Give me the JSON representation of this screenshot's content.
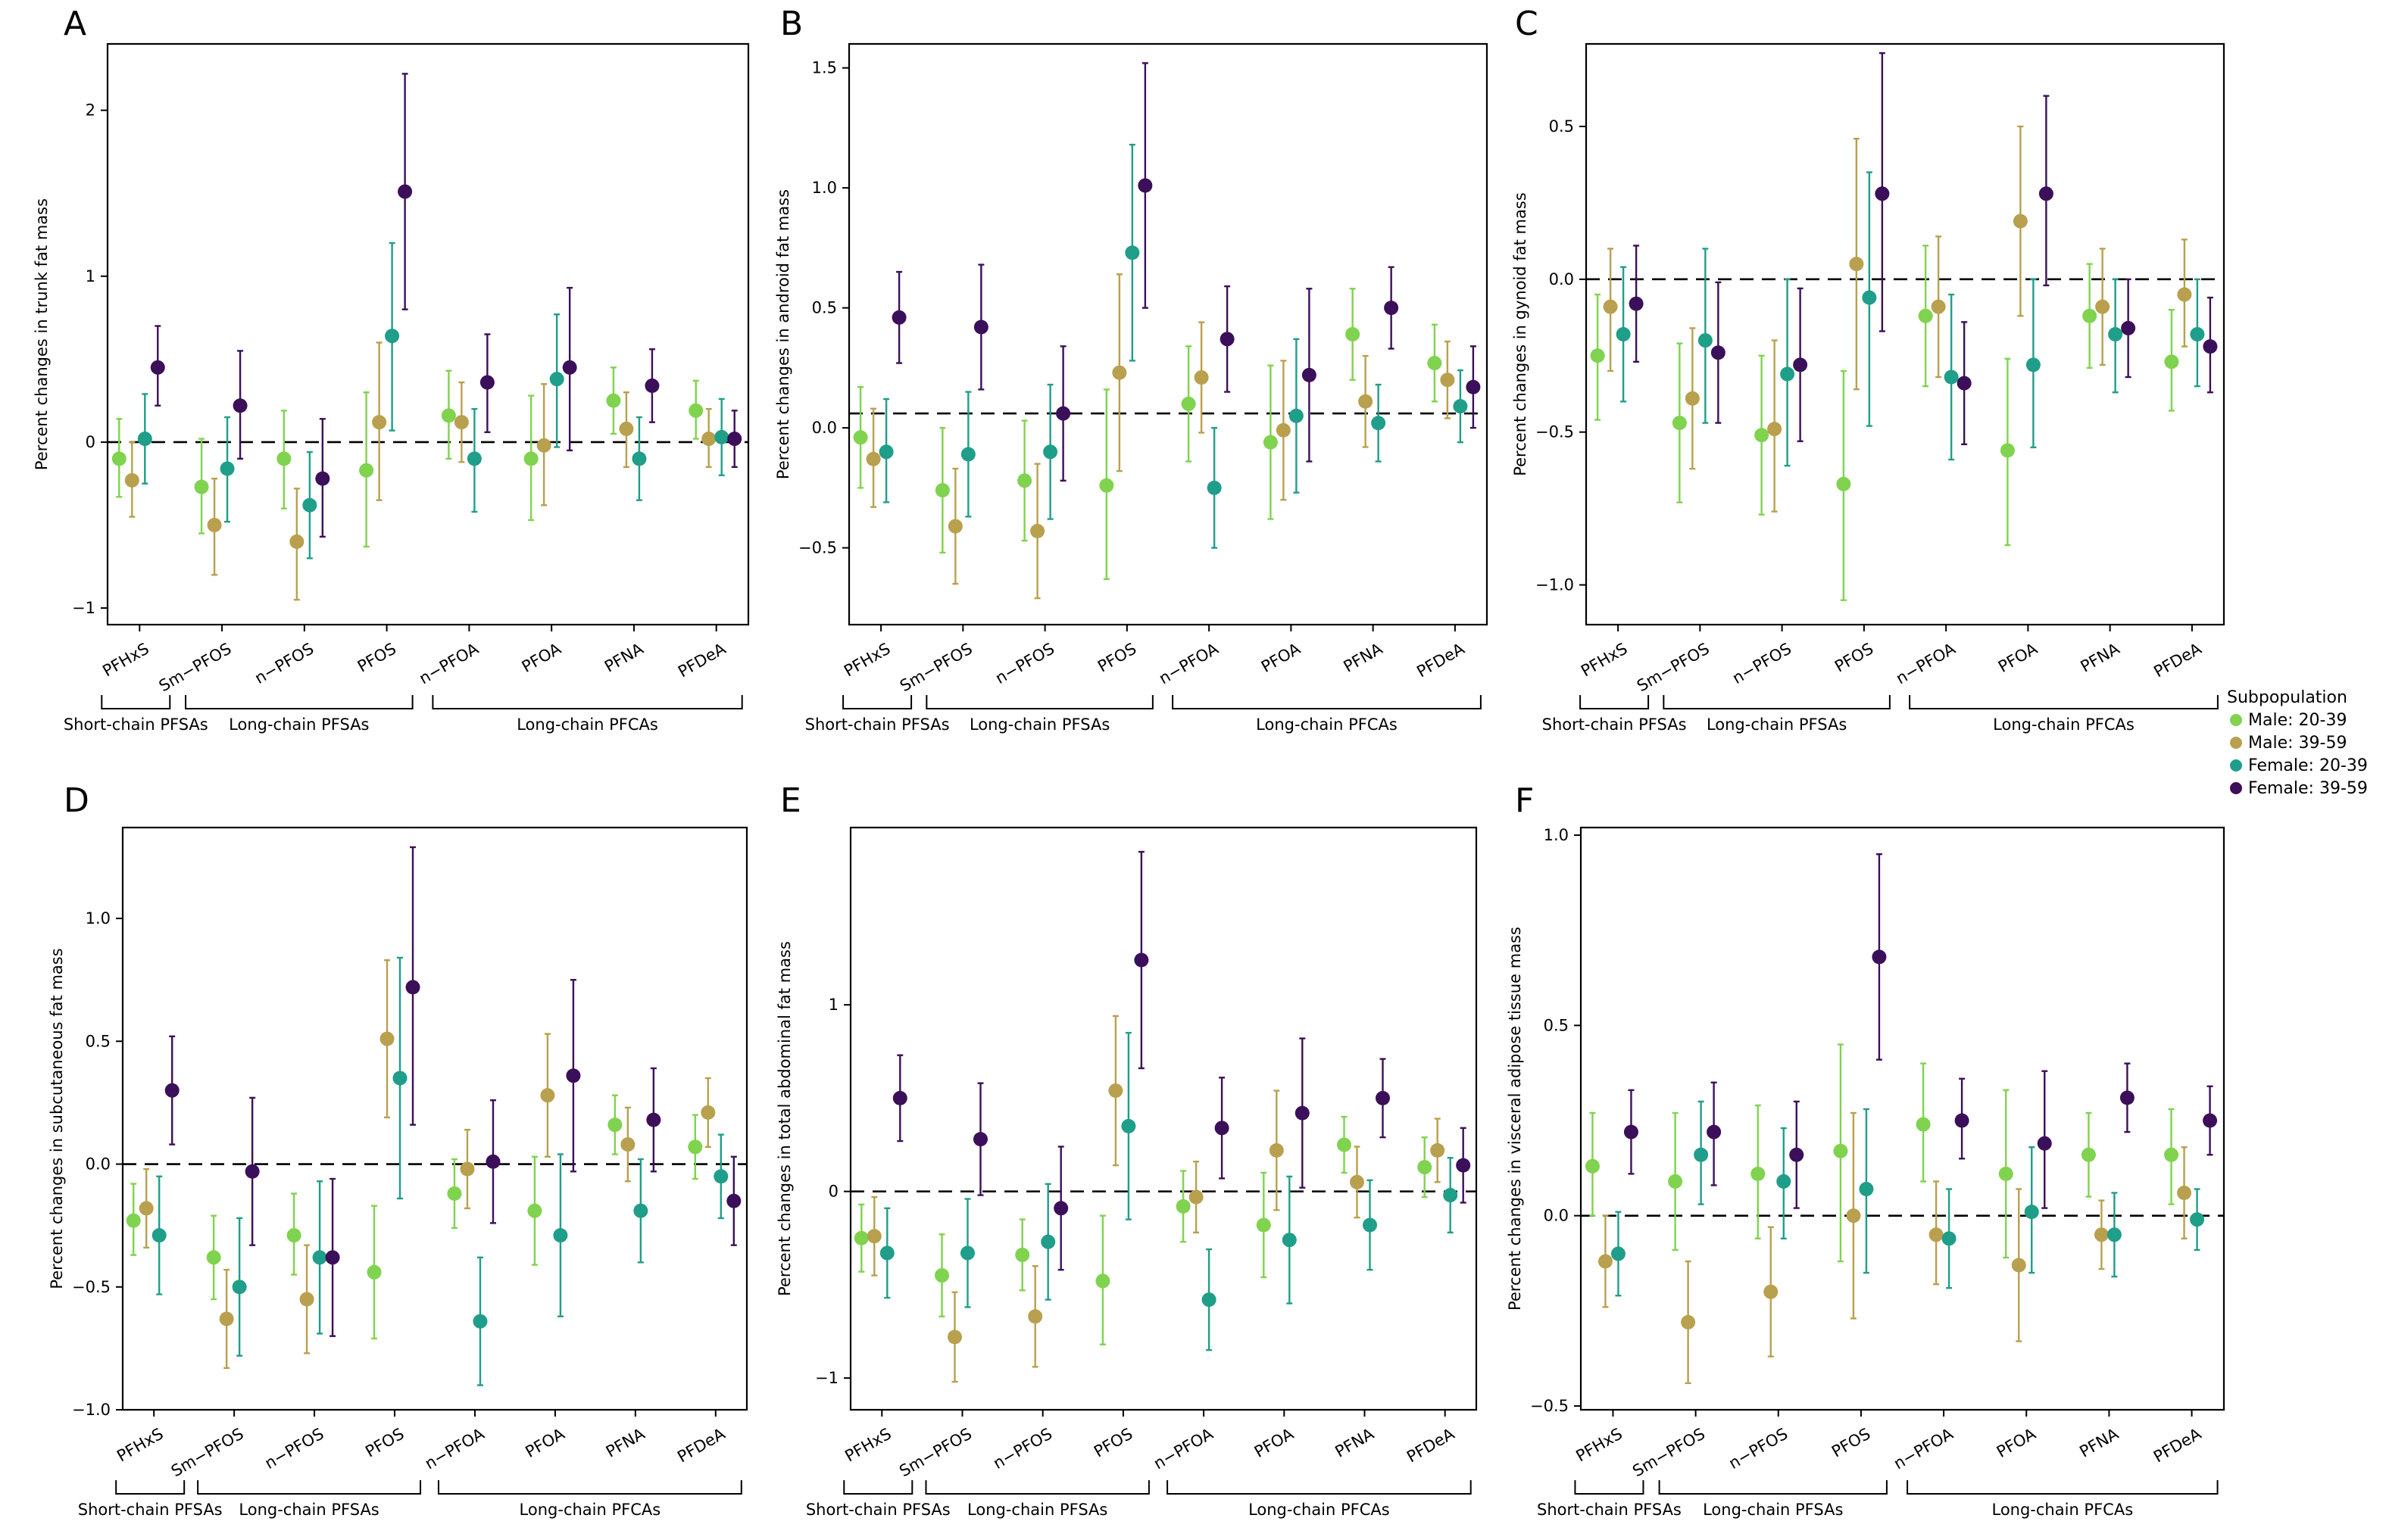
{
  "legend": {
    "title": "Subpopulation",
    "entries": [
      {
        "name": "Male: 20-39",
        "color": "#7fd34e"
      },
      {
        "name": "Male: 39-59",
        "color": "#b8a04e"
      },
      {
        "name": "Female: 20-39",
        "color": "#1f9e89"
      },
      {
        "name": "Female: 39-59",
        "color": "#3b0f59"
      }
    ]
  },
  "categories": [
    "PFHxS",
    "Sm−PFOS",
    "n−PFOS",
    "PFOS",
    "n−PFOA",
    "PFOA",
    "PFNA",
    "PFDeA"
  ],
  "groups": [
    {
      "label": "Short-chain PFSAs",
      "from": 0,
      "to": 0
    },
    {
      "label": "Long-chain PFSAs",
      "from": 1,
      "to": 3
    },
    {
      "label": "Long-chain PFCAs",
      "from": 4,
      "to": 7
    }
  ],
  "chart_data": [
    {
      "panel": "A",
      "type": "scatter",
      "ylabel": "Percent changes in trunk fat mass",
      "ylim": [
        -1.1,
        2.4
      ],
      "yticks": [
        -1,
        0,
        1,
        2
      ],
      "yticklabels": [
        "−1",
        "0",
        "1",
        "2"
      ],
      "reference_line": 0,
      "series": [
        {
          "name": "Male: 20-39",
          "values": [
            -0.1,
            -0.27,
            -0.1,
            -0.17,
            0.16,
            -0.1,
            0.25,
            0.19
          ],
          "lower": [
            -0.33,
            -0.55,
            -0.4,
            -0.63,
            -0.1,
            -0.47,
            0.05,
            0.02
          ],
          "upper": [
            0.14,
            0.02,
            0.19,
            0.3,
            0.43,
            0.28,
            0.45,
            0.37
          ]
        },
        {
          "name": "Male: 39-59",
          "values": [
            -0.23,
            -0.5,
            -0.6,
            0.12,
            0.12,
            -0.02,
            0.08,
            0.02
          ],
          "lower": [
            -0.45,
            -0.8,
            -0.95,
            -0.35,
            -0.12,
            -0.38,
            -0.15,
            -0.15
          ],
          "upper": [
            0.0,
            -0.22,
            -0.28,
            0.6,
            0.36,
            0.35,
            0.3,
            0.2
          ]
        },
        {
          "name": "Female: 20-39",
          "values": [
            0.02,
            -0.16,
            -0.38,
            0.64,
            -0.1,
            0.38,
            -0.1,
            0.03
          ],
          "lower": [
            -0.25,
            -0.48,
            -0.7,
            0.07,
            -0.42,
            -0.03,
            -0.35,
            -0.2
          ],
          "upper": [
            0.29,
            0.15,
            -0.06,
            1.2,
            0.2,
            0.77,
            0.15,
            0.26
          ]
        },
        {
          "name": "Female: 39-59",
          "values": [
            0.45,
            0.22,
            -0.22,
            1.51,
            0.36,
            0.45,
            0.34,
            0.02
          ],
          "lower": [
            0.22,
            -0.1,
            -0.57,
            0.8,
            0.06,
            -0.05,
            0.12,
            -0.15
          ],
          "upper": [
            0.7,
            0.55,
            0.14,
            2.22,
            0.65,
            0.93,
            0.56,
            0.19
          ]
        }
      ]
    },
    {
      "panel": "B",
      "type": "scatter",
      "ylabel": "Percent changes in android fat mass",
      "ylim": [
        -0.82,
        1.6
      ],
      "yticks": [
        -0.5,
        0.0,
        0.5,
        1.0,
        1.5
      ],
      "yticklabels": [
        "−0.5",
        "0.0",
        "0.5",
        "1.0",
        "1.5"
      ],
      "reference_line": 0.06,
      "series": [
        {
          "name": "Male: 20-39",
          "values": [
            -0.04,
            -0.26,
            -0.22,
            -0.24,
            0.1,
            -0.06,
            0.39,
            0.27
          ],
          "lower": [
            -0.25,
            -0.52,
            -0.47,
            -0.63,
            -0.14,
            -0.38,
            0.2,
            0.11
          ],
          "upper": [
            0.17,
            0.0,
            0.03,
            0.16,
            0.34,
            0.26,
            0.58,
            0.43
          ]
        },
        {
          "name": "Male: 39-59",
          "values": [
            -0.13,
            -0.41,
            -0.43,
            0.23,
            0.21,
            -0.01,
            0.11,
            0.2
          ],
          "lower": [
            -0.33,
            -0.65,
            -0.71,
            -0.18,
            -0.02,
            -0.3,
            -0.08,
            0.04
          ],
          "upper": [
            0.08,
            -0.17,
            -0.15,
            0.64,
            0.44,
            0.28,
            0.3,
            0.36
          ]
        },
        {
          "name": "Female: 20-39",
          "values": [
            -0.1,
            -0.11,
            -0.1,
            0.73,
            -0.25,
            0.05,
            0.02,
            0.09
          ],
          "lower": [
            -0.31,
            -0.37,
            -0.38,
            0.28,
            -0.5,
            -0.27,
            -0.14,
            -0.06
          ],
          "upper": [
            0.12,
            0.15,
            0.18,
            1.18,
            0.0,
            0.37,
            0.18,
            0.24
          ]
        },
        {
          "name": "Female: 39-59",
          "values": [
            0.46,
            0.42,
            0.06,
            1.01,
            0.37,
            0.22,
            0.5,
            0.17
          ],
          "lower": [
            0.27,
            0.16,
            -0.22,
            0.5,
            0.15,
            -0.14,
            0.33,
            0.0
          ],
          "upper": [
            0.65,
            0.68,
            0.34,
            1.52,
            0.59,
            0.58,
            0.67,
            0.34
          ]
        }
      ]
    },
    {
      "panel": "C",
      "type": "scatter",
      "ylabel": "Percent changes in gynoid fat mass",
      "ylim": [
        -1.13,
        0.77
      ],
      "yticks": [
        -1.0,
        -0.5,
        0.0,
        0.5
      ],
      "yticklabels": [
        "−1.0",
        "−0.5",
        "0.0",
        "0.5"
      ],
      "reference_line": 0,
      "series": [
        {
          "name": "Male: 20-39",
          "values": [
            -0.25,
            -0.47,
            -0.51,
            -0.67,
            -0.12,
            -0.56,
            -0.12,
            -0.27
          ],
          "lower": [
            -0.46,
            -0.73,
            -0.77,
            -1.05,
            -0.35,
            -0.87,
            -0.29,
            -0.43
          ],
          "upper": [
            -0.05,
            -0.21,
            -0.25,
            -0.3,
            0.11,
            -0.26,
            0.05,
            -0.1
          ]
        },
        {
          "name": "Male: 39-59",
          "values": [
            -0.09,
            -0.39,
            -0.49,
            0.05,
            -0.09,
            0.19,
            -0.09,
            -0.05
          ],
          "lower": [
            -0.3,
            -0.62,
            -0.76,
            -0.36,
            -0.32,
            -0.12,
            -0.28,
            -0.22
          ],
          "upper": [
            0.1,
            -0.16,
            -0.2,
            0.46,
            0.14,
            0.5,
            0.1,
            0.13
          ]
        },
        {
          "name": "Female: 20-39",
          "values": [
            -0.18,
            -0.2,
            -0.31,
            -0.06,
            -0.32,
            -0.28,
            -0.18,
            -0.18
          ],
          "lower": [
            -0.4,
            -0.47,
            -0.61,
            -0.48,
            -0.59,
            -0.55,
            -0.37,
            -0.35
          ],
          "upper": [
            0.04,
            0.1,
            0.0,
            0.35,
            -0.05,
            0.0,
            0.0,
            0.0
          ]
        },
        {
          "name": "Female: 39-59",
          "values": [
            -0.08,
            -0.24,
            -0.28,
            0.28,
            -0.34,
            0.28,
            -0.16,
            -0.22
          ],
          "lower": [
            -0.27,
            -0.47,
            -0.53,
            -0.17,
            -0.54,
            -0.02,
            -0.32,
            -0.37
          ],
          "upper": [
            0.11,
            -0.01,
            -0.03,
            0.74,
            -0.14,
            0.6,
            0.0,
            -0.06
          ]
        }
      ]
    },
    {
      "panel": "D",
      "type": "scatter",
      "ylabel": "Percent changes in subcutaneous fat mass",
      "ylim": [
        -1.0,
        1.37
      ],
      "yticks": [
        -1.0,
        -0.5,
        0.0,
        0.5,
        1.0
      ],
      "yticklabels": [
        "−1.0",
        "−0.5",
        "0.0",
        "0.5",
        "1.0"
      ],
      "reference_line": 0,
      "series": [
        {
          "name": "Male: 20-39",
          "values": [
            -0.23,
            -0.38,
            -0.29,
            -0.44,
            -0.12,
            -0.19,
            0.16,
            0.07
          ],
          "lower": [
            -0.37,
            -0.55,
            -0.45,
            -0.71,
            -0.26,
            -0.41,
            0.04,
            -0.06
          ],
          "upper": [
            -0.08,
            -0.21,
            -0.12,
            -0.17,
            0.02,
            0.03,
            0.28,
            0.2
          ]
        },
        {
          "name": "Male: 39-59",
          "values": [
            -0.18,
            -0.63,
            -0.55,
            0.51,
            -0.02,
            0.28,
            0.08,
            0.21
          ],
          "lower": [
            -0.34,
            -0.83,
            -0.77,
            0.19,
            -0.18,
            0.03,
            -0.07,
            0.07
          ],
          "upper": [
            -0.02,
            -0.43,
            -0.33,
            0.83,
            0.14,
            0.53,
            0.23,
            0.35
          ]
        },
        {
          "name": "Female: 20-39",
          "values": [
            -0.29,
            -0.5,
            -0.38,
            0.35,
            -0.64,
            -0.29,
            -0.19,
            -0.05
          ],
          "lower": [
            -0.53,
            -0.78,
            -0.69,
            -0.14,
            -0.9,
            -0.62,
            -0.4,
            -0.22
          ],
          "upper": [
            -0.05,
            -0.22,
            -0.07,
            0.84,
            -0.38,
            0.04,
            0.02,
            0.12
          ]
        },
        {
          "name": "Female: 39-59",
          "values": [
            0.3,
            -0.03,
            -0.38,
            0.72,
            0.01,
            0.36,
            0.18,
            -0.15
          ],
          "lower": [
            0.08,
            -0.33,
            -0.7,
            0.16,
            -0.24,
            -0.03,
            -0.03,
            -0.33
          ],
          "upper": [
            0.52,
            0.27,
            -0.06,
            1.29,
            0.26,
            0.75,
            0.39,
            0.03
          ]
        }
      ]
    },
    {
      "panel": "E",
      "type": "scatter",
      "ylabel": "Percent changes in total abdominal fat mass",
      "ylim": [
        -1.17,
        1.95
      ],
      "yticks": [
        -1,
        0,
        1
      ],
      "yticklabels": [
        "−1",
        "0",
        "1"
      ],
      "reference_line": 0,
      "series": [
        {
          "name": "Male: 20-39",
          "values": [
            -0.25,
            -0.45,
            -0.34,
            -0.48,
            -0.08,
            -0.18,
            0.25,
            0.13
          ],
          "lower": [
            -0.43,
            -0.67,
            -0.53,
            -0.82,
            -0.27,
            -0.46,
            0.1,
            -0.03
          ],
          "upper": [
            -0.07,
            -0.23,
            -0.15,
            -0.13,
            0.11,
            0.1,
            0.4,
            0.29
          ]
        },
        {
          "name": "Male: 39-59",
          "values": [
            -0.24,
            -0.78,
            -0.67,
            0.54,
            -0.03,
            0.22,
            0.05,
            0.22
          ],
          "lower": [
            -0.45,
            -1.02,
            -0.94,
            0.14,
            -0.22,
            -0.1,
            -0.14,
            0.05
          ],
          "upper": [
            -0.03,
            -0.54,
            -0.4,
            0.94,
            0.16,
            0.54,
            0.24,
            0.39
          ]
        },
        {
          "name": "Female: 20-39",
          "values": [
            -0.33,
            -0.33,
            -0.27,
            0.35,
            -0.58,
            -0.26,
            -0.18,
            -0.02
          ],
          "lower": [
            -0.57,
            -0.62,
            -0.58,
            -0.15,
            -0.85,
            -0.6,
            -0.42,
            -0.22
          ],
          "upper": [
            -0.09,
            -0.04,
            0.04,
            0.85,
            -0.31,
            0.08,
            0.06,
            0.18
          ]
        },
        {
          "name": "Female: 39-59",
          "values": [
            0.5,
            0.28,
            -0.09,
            1.24,
            0.34,
            0.42,
            0.5,
            0.14
          ],
          "lower": [
            0.27,
            -0.02,
            -0.42,
            0.66,
            0.07,
            0.02,
            0.29,
            -0.06
          ],
          "upper": [
            0.73,
            0.58,
            0.24,
            1.82,
            0.61,
            0.82,
            0.71,
            0.34
          ]
        }
      ]
    },
    {
      "panel": "F",
      "type": "scatter",
      "ylabel": "Percent changes in visceral adipose tissue mass",
      "ylim": [
        -0.51,
        1.02
      ],
      "yticks": [
        -0.5,
        0.0,
        0.5,
        1.0
      ],
      "yticklabels": [
        "−0.5",
        "0.0",
        "0.5",
        "1.0"
      ],
      "reference_line": 0,
      "series": [
        {
          "name": "Male: 20-39",
          "values": [
            0.13,
            0.09,
            0.11,
            0.17,
            0.24,
            0.11,
            0.16,
            0.16
          ],
          "lower": [
            0.0,
            -0.09,
            -0.06,
            -0.12,
            0.09,
            -0.11,
            0.05,
            0.03
          ],
          "upper": [
            0.27,
            0.27,
            0.29,
            0.45,
            0.4,
            0.33,
            0.27,
            0.28
          ]
        },
        {
          "name": "Male: 39-59",
          "values": [
            -0.12,
            -0.28,
            -0.2,
            0.0,
            -0.05,
            -0.13,
            -0.05,
            0.06
          ],
          "lower": [
            -0.24,
            -0.44,
            -0.37,
            -0.27,
            -0.18,
            -0.33,
            -0.14,
            -0.06
          ],
          "upper": [
            0.0,
            -0.12,
            -0.03,
            0.27,
            0.09,
            0.07,
            0.04,
            0.18
          ]
        },
        {
          "name": "Female: 20-39",
          "values": [
            -0.1,
            0.16,
            0.09,
            0.07,
            -0.06,
            0.01,
            -0.05,
            -0.01
          ],
          "lower": [
            -0.21,
            0.03,
            -0.06,
            -0.15,
            -0.19,
            -0.15,
            -0.16,
            -0.09
          ],
          "upper": [
            0.01,
            0.3,
            0.23,
            0.28,
            0.07,
            0.18,
            0.06,
            0.07
          ]
        },
        {
          "name": "Female: 39-59",
          "values": [
            0.22,
            0.22,
            0.16,
            0.68,
            0.25,
            0.19,
            0.31,
            0.25
          ],
          "lower": [
            0.11,
            0.08,
            0.02,
            0.41,
            0.15,
            0.02,
            0.22,
            0.16
          ],
          "upper": [
            0.33,
            0.35,
            0.3,
            0.95,
            0.36,
            0.38,
            0.4,
            0.34
          ]
        }
      ]
    }
  ]
}
